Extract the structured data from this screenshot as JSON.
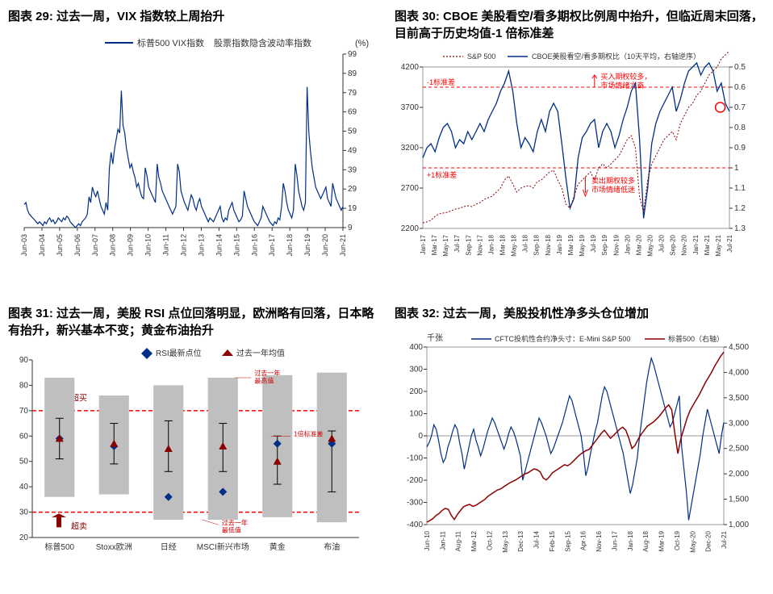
{
  "chart29": {
    "title_prefix": "图表 29: ",
    "title_text": "过去一周，VIX 指数较上周抬升",
    "legend1": "标普500 VIX指数",
    "legend2": "股票指数隐含波动率指数",
    "y_unit": "(%)",
    "y_ticks": [
      9,
      19,
      29,
      39,
      49,
      59,
      69,
      79,
      89,
      99
    ],
    "x_ticks": [
      "Jun-03",
      "Jun-04",
      "Jun-05",
      "Jun-06",
      "Jun-07",
      "Jun-08",
      "Jun-09",
      "Jun-10",
      "Jun-11",
      "Jun-12",
      "Jun-13",
      "Jun-14",
      "Jun-15",
      "Jun-16",
      "Jun-17",
      "Jun-18",
      "Jun-19",
      "Jun-20",
      "Jun-21"
    ],
    "line_color": "#002f87",
    "series": [
      21,
      22,
      18,
      16,
      15,
      14,
      13,
      12,
      11,
      12,
      11,
      10,
      12,
      11,
      13,
      14,
      12,
      13,
      11,
      12,
      14,
      13,
      12,
      14,
      13,
      15,
      14,
      12,
      11,
      10,
      9,
      10,
      11,
      10,
      12,
      13,
      14,
      16,
      25,
      22,
      30,
      27,
      25,
      28,
      24,
      20,
      18,
      16,
      22,
      18,
      40,
      48,
      42,
      50,
      55,
      60,
      58,
      80,
      62,
      58,
      50,
      45,
      40,
      42,
      38,
      35,
      30,
      32,
      28,
      25,
      24,
      40,
      36,
      30,
      28,
      26,
      24,
      22,
      42,
      35,
      32,
      28,
      26,
      24,
      22,
      20,
      18,
      16,
      18,
      20,
      42,
      38,
      28,
      25,
      22,
      20,
      18,
      22,
      26,
      24,
      20,
      18,
      22,
      24,
      20,
      18,
      16,
      14,
      12,
      14,
      13,
      12,
      14,
      16,
      18,
      20,
      14,
      12,
      14,
      13,
      18,
      20,
      22,
      18,
      16,
      14,
      12,
      13,
      15,
      28,
      24,
      20,
      18,
      16,
      14,
      12,
      11,
      10,
      12,
      14,
      20,
      18,
      16,
      14,
      12,
      11,
      10,
      12,
      11,
      14,
      13,
      20,
      32,
      28,
      22,
      18,
      16,
      14,
      18,
      42,
      36,
      28,
      24,
      20,
      18,
      22,
      82,
      58,
      48,
      40,
      35,
      30,
      28,
      26,
      24,
      26,
      28,
      30,
      24,
      22,
      20,
      32,
      28,
      24,
      22,
      20,
      18,
      20
    ]
  },
  "chart30": {
    "title_prefix": "图表 30: ",
    "title_text": "CBOE 美股看空/看多期权比例周中抬升，但临近周末回落，目前高于历史均值-1 倍标准差",
    "legend1": "S&P 500",
    "legend2": "CBOE美股看空/看多期权比（10天平均，右轴逆序）",
    "y_left_ticks": [
      2200,
      2700,
      3200,
      3700,
      4200
    ],
    "y_right_ticks": [
      0.5,
      0.6,
      0.7,
      0.8,
      0.9,
      1,
      1.1,
      1.2,
      1.3
    ],
    "x_ticks": [
      "Jan-17",
      "Mar-17",
      "May-17",
      "Jul-17",
      "Sep-17",
      "Nov-17",
      "Jan-18",
      "Mar-18",
      "May-18",
      "Jul-18",
      "Sep-18",
      "Nov-18",
      "Jan-19",
      "Mar-19",
      "May-19",
      "Jul-19",
      "Sep-19",
      "Nov-19",
      "Jan-20",
      "Mar-20",
      "May-20",
      "Jul-20",
      "Sep-20",
      "Nov-20",
      "Jan-21",
      "Mar-21",
      "May-21",
      "Jul-21"
    ],
    "line1_color": "#8b0000",
    "line2_color": "#002f87",
    "top_band_color": "#ff0000",
    "band_label_top": "-1标准差",
    "band_label_bot": "+1标准差",
    "anno_top": "买入期权较多，\n市场情绪亢奋",
    "anno_bot": "卖出期权较多\n市场情绪低迷",
    "sp500": [
      2270,
      2280,
      2300,
      2350,
      2380,
      2390,
      2400,
      2420,
      2440,
      2450,
      2470,
      2480,
      2470,
      2500,
      2520,
      2560,
      2580,
      2600,
      2650,
      2700,
      2800,
      2850,
      2750,
      2650,
      2700,
      2720,
      2730,
      2700,
      2780,
      2800,
      2850,
      2900,
      2920,
      2800,
      2700,
      2500,
      2450,
      2600,
      2750,
      2800,
      2850,
      2900,
      2800,
      2950,
      3000,
      2950,
      3000,
      3050,
      3100,
      3200,
      3300,
      3350,
      3200,
      2600,
      2400,
      2800,
      3000,
      3100,
      3200,
      3300,
      3350,
      3400,
      3300,
      3500,
      3600,
      3700,
      3750,
      3850,
      3900,
      4000,
      4100,
      4150,
      4200,
      4300,
      4350,
      4400
    ],
    "ratio": [
      0.95,
      0.9,
      0.88,
      0.92,
      0.85,
      0.8,
      0.78,
      0.82,
      0.9,
      0.86,
      0.88,
      0.82,
      0.86,
      0.82,
      0.78,
      0.82,
      0.76,
      0.72,
      0.68,
      0.62,
      0.58,
      0.52,
      0.62,
      0.78,
      0.9,
      0.85,
      0.88,
      0.92,
      0.82,
      0.76,
      0.82,
      0.72,
      0.68,
      0.72,
      0.88,
      1.05,
      1.2,
      1.15,
      0.95,
      0.85,
      0.82,
      0.78,
      0.76,
      0.9,
      0.82,
      0.78,
      0.82,
      0.9,
      0.84,
      0.76,
      0.7,
      0.62,
      0.58,
      0.85,
      1.25,
      1.1,
      0.88,
      0.78,
      0.72,
      0.68,
      0.64,
      0.6,
      0.72,
      0.66,
      0.58,
      0.52,
      0.5,
      0.48,
      0.54,
      0.5,
      0.48,
      0.52,
      0.62,
      0.58,
      0.68,
      0.72
    ]
  },
  "chart31": {
    "title_prefix": "图表 31: ",
    "title_text": "过去一周，美股 RSI 点位回落明显，欧洲略有回落，日本略有抬升，新兴基本不变；黄金布油抬升",
    "legend1": "RSI最新点位",
    "legend2": "过去一年均值",
    "y_ticks": [
      20,
      30,
      40,
      50,
      60,
      70,
      80,
      90
    ],
    "categories": [
      "标普500",
      "Stoxx欧洲",
      "日经",
      "MSCI新兴市场",
      "黄金",
      "布油"
    ],
    "bar_color": "#bfbfbf",
    "marker1_color": "#002f87",
    "marker2_color": "#8b0000",
    "threshold_top": 70,
    "threshold_bot": 30,
    "anno_overbought": "超买",
    "anno_oversold": "超卖",
    "anno_yearmax": "过去一年\n最高值",
    "anno_yearmin": "过去一年\n最低值",
    "anno_1std": "1倍标准差",
    "data": [
      {
        "bar_lo": 36,
        "bar_hi": 83,
        "err_lo": 51,
        "err_hi": 67,
        "m1": 59,
        "m2": 59
      },
      {
        "bar_lo": 37,
        "bar_hi": 76,
        "err_lo": 49,
        "err_hi": 65,
        "m1": 56,
        "m2": 57
      },
      {
        "bar_lo": 27,
        "bar_hi": 80,
        "err_lo": 46,
        "err_hi": 66,
        "m1": 36,
        "m2": 55
      },
      {
        "bar_lo": 27,
        "bar_hi": 83,
        "err_lo": 46,
        "err_hi": 65,
        "m1": 38,
        "m2": 56
      },
      {
        "bar_lo": 28,
        "bar_hi": 84,
        "err_lo": 41,
        "err_hi": 60,
        "m1": 57,
        "m2": 50
      },
      {
        "bar_lo": 26,
        "bar_hi": 85,
        "err_lo": 38,
        "err_hi": 62,
        "m1": 57,
        "m2": 59
      }
    ]
  },
  "chart32": {
    "title_prefix": "图表 32: ",
    "title_text": "过去一周，美股投机性净多头仓位增加",
    "y_left_label": "千张",
    "legend1": "CFTC投机性合约净头寸：E-Mini S&P 500",
    "legend2": "标普500（右轴）",
    "y_left_ticks": [
      -400,
      -300,
      -200,
      -100,
      0,
      100,
      200,
      300,
      400
    ],
    "y_right_ticks": [
      1000,
      1500,
      2000,
      2500,
      3000,
      3500,
      4000,
      4500
    ],
    "x_ticks": [
      "Jun-10",
      "Jan-11",
      "Aug-11",
      "Mar-12",
      "Oct-12",
      "May-13",
      "Dec-13",
      "Jul-14",
      "Feb-15",
      "Sep-15",
      "Apr-16",
      "Nov-16",
      "Jun-17",
      "Jan-18",
      "Aug-18",
      "Mar-19",
      "Oct-19",
      "May-20",
      "Dec-20",
      "Jul-21"
    ],
    "line1_color": "#002f87",
    "line2_color": "#8b0000",
    "cftc": [
      -50,
      -30,
      0,
      50,
      30,
      -20,
      -80,
      -120,
      -100,
      -50,
      -20,
      20,
      50,
      30,
      -30,
      -80,
      -150,
      -100,
      -50,
      0,
      30,
      -20,
      -50,
      -90,
      -60,
      -20,
      20,
      50,
      80,
      60,
      30,
      0,
      -30,
      -60,
      -30,
      10,
      40,
      20,
      -10,
      -50,
      -90,
      -200,
      -160,
      -120,
      -80,
      -40,
      0,
      40,
      80,
      60,
      30,
      0,
      -40,
      -80,
      -60,
      -30,
      0,
      30,
      60,
      100,
      140,
      180,
      160,
      120,
      80,
      40,
      0,
      -80,
      -180,
      -140,
      -80,
      -30,
      20,
      60,
      120,
      180,
      220,
      200,
      160,
      120,
      80,
      40,
      0,
      -40,
      -80,
      -140,
      -200,
      -260,
      -220,
      -160,
      -100,
      0,
      80,
      160,
      240,
      300,
      350,
      320,
      280,
      240,
      200,
      160,
      120,
      80,
      40,
      60,
      100,
      140,
      180,
      -50,
      -150,
      -250,
      -380,
      -320,
      -260,
      -200,
      -140,
      -80,
      0,
      60,
      120,
      80,
      40,
      0,
      -40,
      -80,
      0,
      60
    ],
    "sp500": [
      1050,
      1080,
      1120,
      1180,
      1220,
      1280,
      1320,
      1300,
      1180,
      1100,
      1200,
      1280,
      1350,
      1380,
      1400,
      1360,
      1380,
      1420,
      1460,
      1500,
      1560,
      1600,
      1640,
      1680,
      1700,
      1740,
      1780,
      1820,
      1850,
      1880,
      1920,
      1960,
      2000,
      2020,
      2060,
      2100,
      2080,
      2040,
      1920,
      1880,
      1940,
      2020,
      2060,
      2100,
      2140,
      2180,
      2160,
      2200,
      2260,
      2320,
      2380,
      2420,
      2460,
      2480,
      2560,
      2640,
      2720,
      2800,
      2860,
      2780,
      2700,
      2760,
      2820,
      2880,
      2920,
      2860,
      2700,
      2500,
      2560,
      2680,
      2780,
      2860,
      2940,
      2980,
      3020,
      3080,
      3140,
      3220,
      3300,
      3360,
      3260,
      2800,
      2400,
      2700,
      2900,
      3100,
      3250,
      3360,
      3460,
      3560,
      3680,
      3800,
      3900,
      4000,
      4120,
      4220,
      4320,
      4400
    ]
  }
}
